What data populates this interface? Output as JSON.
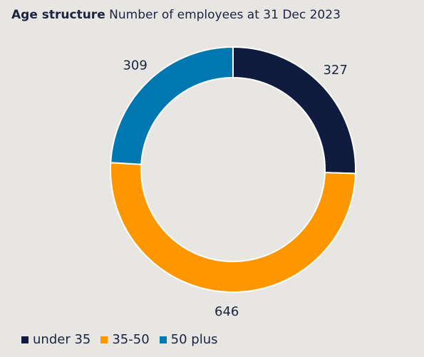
{
  "chart_data": {
    "type": "pie",
    "title": "Age structure",
    "subtitle": "Number of employees at 31 Dec 2023",
    "categories": [
      "under 35",
      "35-50",
      "50 plus"
    ],
    "values": [
      327,
      646,
      309
    ],
    "colors": [
      "#0f1c3f",
      "#fe9600",
      "#0077b0"
    ],
    "donut": true,
    "legend_position": "bottom-left"
  }
}
